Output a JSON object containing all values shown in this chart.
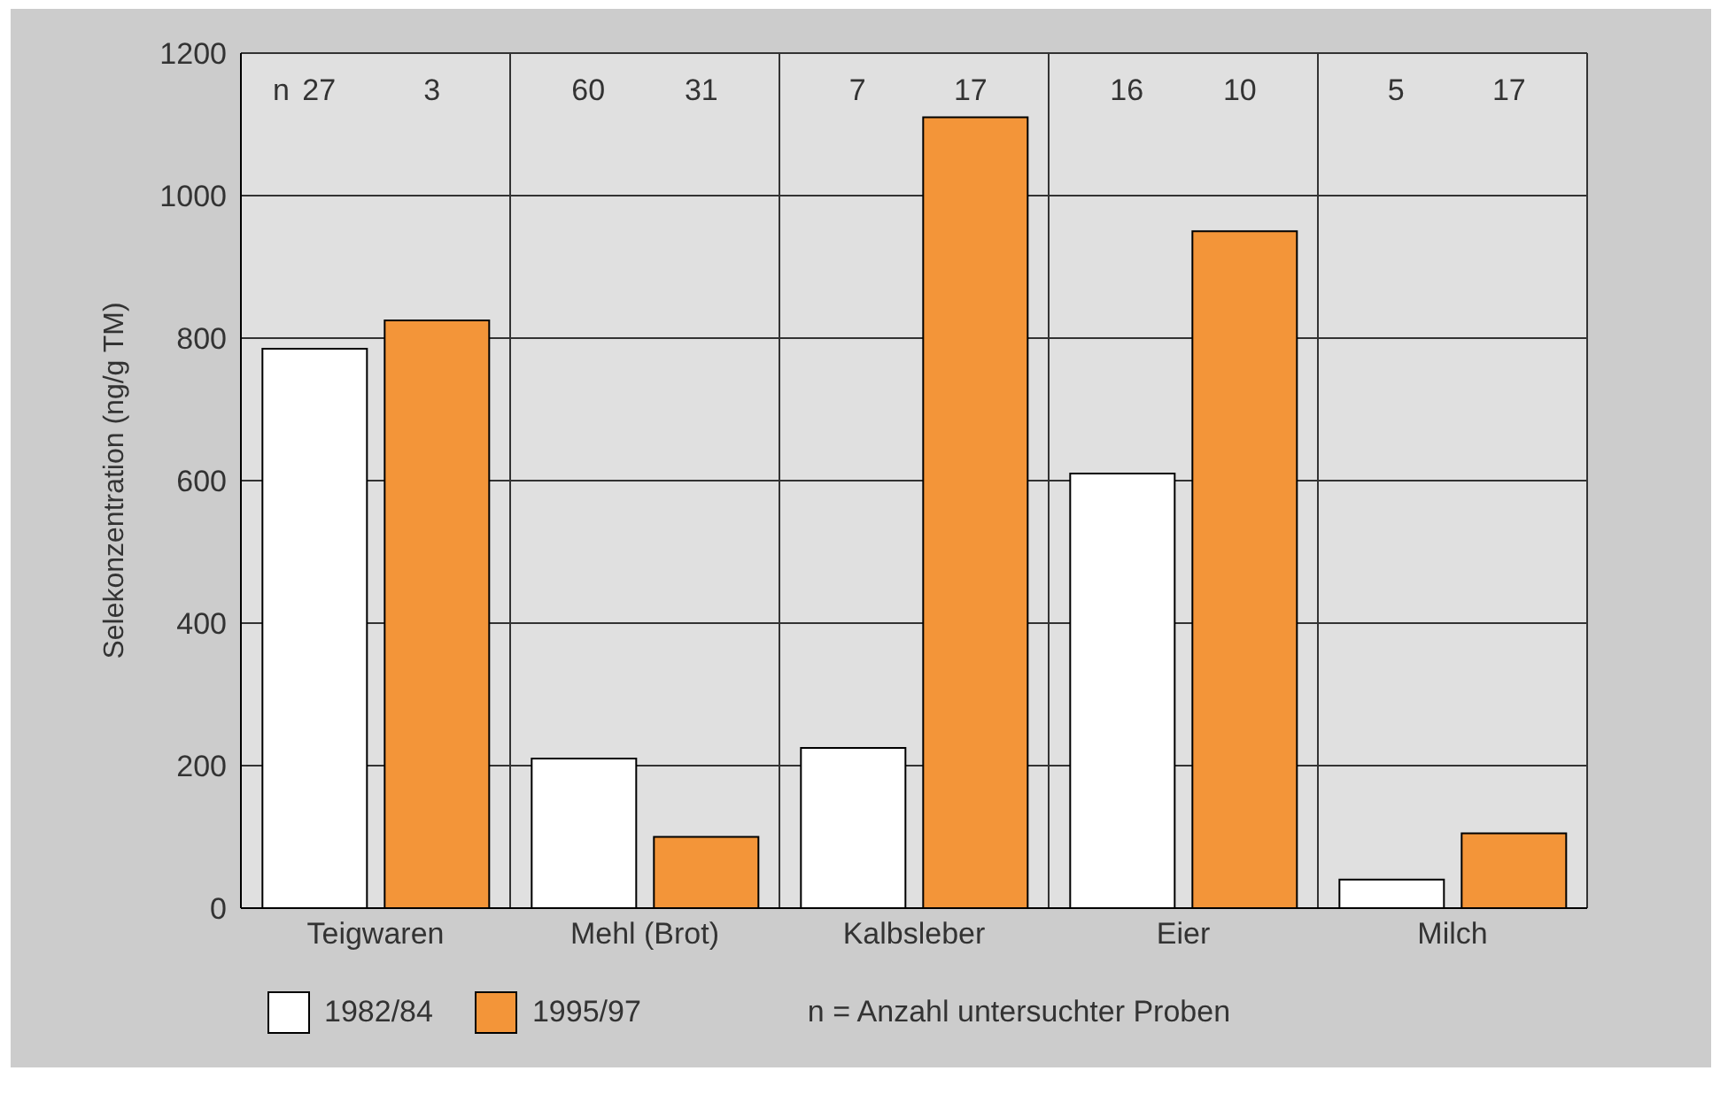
{
  "chart_data": {
    "type": "bar",
    "ylabel": "Selekonzentration (ng/g TM)",
    "categories": [
      "Teigwaren",
      "Mehl (Brot)",
      "Kalbsleber",
      "Eier",
      "Milch"
    ],
    "series": [
      {
        "name": "1982/84",
        "color": "#ffffff",
        "values": [
          785,
          210,
          225,
          610,
          40
        ]
      },
      {
        "name": "1995/97",
        "color": "#f39539",
        "values": [
          825,
          100,
          1110,
          950,
          105
        ]
      }
    ],
    "ylim": [
      0,
      1200
    ],
    "yticks": [
      0,
      200,
      400,
      600,
      800,
      1000,
      1200
    ],
    "grid": true,
    "legend": "bottom",
    "annotations": [
      "n",
      "27",
      "3",
      "60",
      "31",
      "7",
      "17",
      "16",
      "10",
      "5",
      "17",
      "n = Anzahl untersuchter Proben"
    ]
  }
}
